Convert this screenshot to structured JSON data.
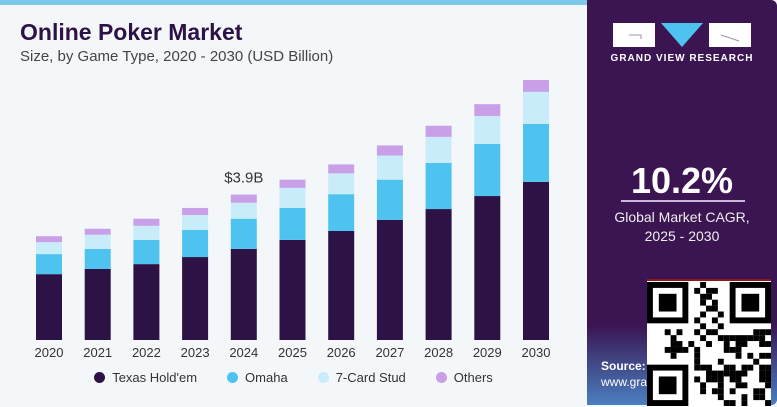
{
  "chart_data": {
    "type": "bar",
    "stacked": true,
    "title": "Online Poker Market",
    "subtitle": "Size, by Game Type, 2020 - 2030 (USD Billion)",
    "categories": [
      "2020",
      "2021",
      "2022",
      "2023",
      "2024",
      "2025",
      "2026",
      "2027",
      "2028",
      "2029",
      "2030"
    ],
    "series": [
      {
        "name": "Texas Hold'em",
        "color": "#2d1245",
        "values": [
          1.77,
          1.91,
          2.04,
          2.23,
          2.45,
          2.69,
          2.93,
          3.23,
          3.52,
          3.87,
          4.25
        ]
      },
      {
        "name": "Omaha",
        "color": "#4fc3f0",
        "values": [
          0.54,
          0.54,
          0.65,
          0.73,
          0.81,
          0.86,
          0.99,
          1.08,
          1.24,
          1.4,
          1.56
        ]
      },
      {
        "name": "7-Card Stud",
        "color": "#c8ecfa",
        "values": [
          0.32,
          0.38,
          0.38,
          0.4,
          0.43,
          0.54,
          0.56,
          0.65,
          0.7,
          0.75,
          0.86
        ]
      },
      {
        "name": "Others",
        "color": "#c9a0e8",
        "values": [
          0.16,
          0.16,
          0.19,
          0.19,
          0.22,
          0.22,
          0.24,
          0.27,
          0.3,
          0.32,
          0.32
        ]
      }
    ],
    "annotations": [
      {
        "category": "2024",
        "text": "$3.9B"
      }
    ],
    "ylim": [
      0,
      7.2
    ],
    "grid": false,
    "legend": "bottom"
  },
  "sidebar": {
    "brand": "GRAND VIEW RESEARCH",
    "cagr_value": "10.2%",
    "cagr_label_1": "Global Market CAGR,",
    "cagr_label_2": "2025 - 2030",
    "source_label": "Source:",
    "source_url": "www.gra"
  }
}
